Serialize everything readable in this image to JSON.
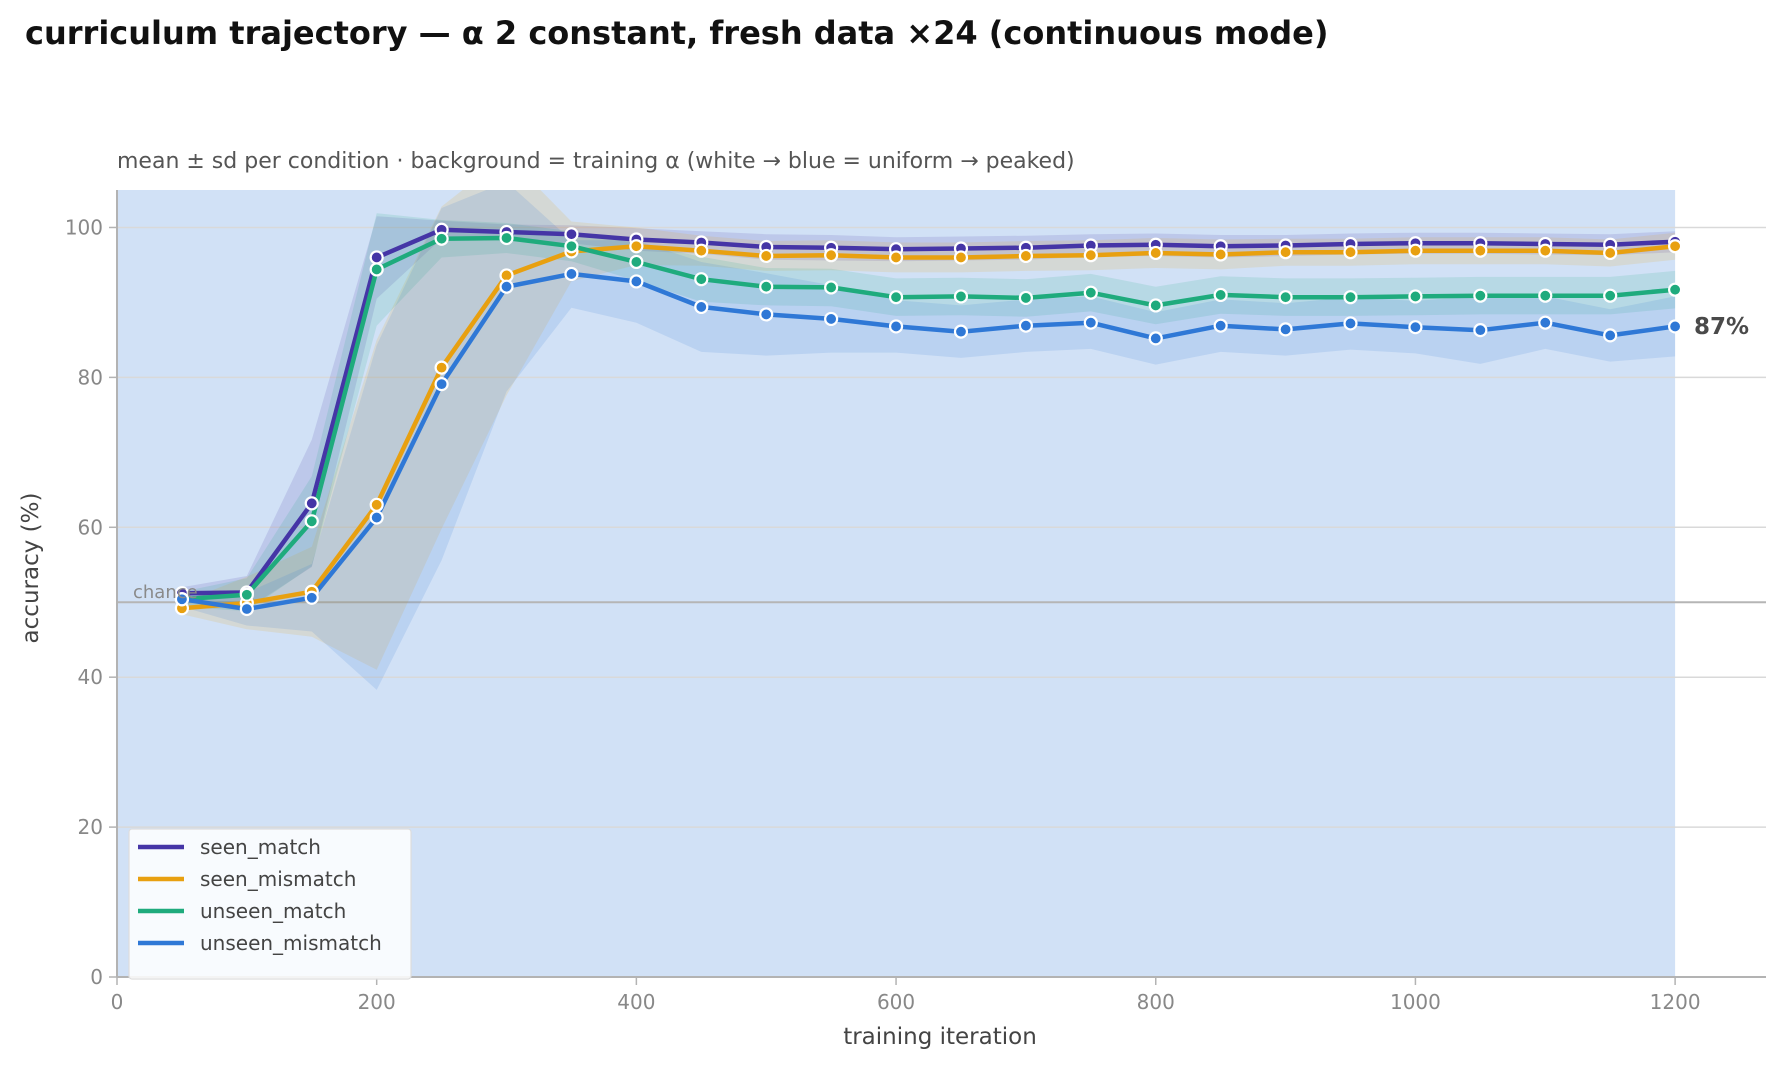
{
  "title": "curriculum trajectory — α 2 constant, fresh data ×24 (continuous mode)",
  "colors": {
    "background_band": "#d1e1f6",
    "grid": "#d9d9d9",
    "axis": "#b3b3b3",
    "chance_line": "#b5b5b5",
    "tick_text": "#888888",
    "label_text": "#444444"
  },
  "chart_data": {
    "type": "line",
    "subtitle": "mean ± sd per condition · background = training α (white → blue = uniform → peaked)",
    "xlabel": "training iteration",
    "ylabel": "accuracy (%)",
    "xlim": [
      0,
      1270
    ],
    "ylim": [
      0,
      105
    ],
    "xticks": [
      0,
      200,
      400,
      600,
      800,
      1000,
      1200
    ],
    "yticks": [
      0,
      20,
      40,
      60,
      80,
      100
    ],
    "grid": "horizontal",
    "legend_position": "lower-left",
    "background_band_x": [
      0,
      1200
    ],
    "chance": {
      "value": 50,
      "label": "chance"
    },
    "end_annotation": {
      "x": 1200,
      "y": 87,
      "text": "87%"
    },
    "x": [
      50,
      100,
      150,
      200,
      250,
      300,
      350,
      400,
      450,
      500,
      550,
      600,
      650,
      700,
      750,
      800,
      850,
      900,
      950,
      1000,
      1050,
      1100,
      1150,
      1200
    ],
    "series": [
      {
        "name": "seen_match",
        "color": "#4535a6",
        "values": [
          51.2,
          51.3,
          63.2,
          96.0,
          99.7,
          99.4,
          99.1,
          98.4,
          98.0,
          97.4,
          97.3,
          97.1,
          97.2,
          97.3,
          97.6,
          97.7,
          97.5,
          97.6,
          97.8,
          97.9,
          97.9,
          97.8,
          97.7,
          98.1
        ],
        "sd": [
          0.8,
          2.2,
          8.5,
          5.5,
          1.2,
          1.0,
          1.2,
          1.5,
          1.5,
          1.7,
          1.7,
          1.6,
          1.6,
          1.6,
          1.5,
          1.5,
          1.5,
          1.4,
          1.4,
          1.4,
          1.4,
          1.4,
          1.4,
          1.4
        ]
      },
      {
        "name": "seen_mismatch",
        "color": "#e8a010",
        "values": [
          49.2,
          49.9,
          51.4,
          63.0,
          81.3,
          93.6,
          96.8,
          97.5,
          96.9,
          96.2,
          96.3,
          96.0,
          96.0,
          96.2,
          96.3,
          96.6,
          96.4,
          96.7,
          96.7,
          96.9,
          96.9,
          96.9,
          96.6,
          97.5
        ],
        "sd": [
          0.8,
          3.5,
          6.0,
          22.0,
          21.5,
          16.0,
          4.0,
          2.5,
          2.0,
          2.0,
          2.0,
          2.0,
          2.0,
          2.0,
          2.0,
          2.0,
          2.0,
          1.8,
          1.8,
          1.8,
          1.8,
          1.8,
          1.8,
          1.8
        ]
      },
      {
        "name": "unseen_match",
        "color": "#1fab7d",
        "values": [
          50.4,
          51.0,
          60.8,
          94.4,
          98.5,
          98.6,
          97.5,
          95.4,
          93.1,
          92.1,
          92.0,
          90.7,
          90.8,
          90.6,
          91.3,
          89.6,
          91.0,
          90.7,
          90.7,
          90.8,
          90.9,
          90.9,
          90.9,
          91.7
        ],
        "sd": [
          1.0,
          2.2,
          6.0,
          7.5,
          2.5,
          2.0,
          2.0,
          2.5,
          3.0,
          2.5,
          2.5,
          2.5,
          2.5,
          2.5,
          2.5,
          2.5,
          2.5,
          2.5,
          2.5,
          2.5,
          2.5,
          2.5,
          2.5,
          2.5
        ]
      },
      {
        "name": "unseen_mismatch",
        "color": "#2f78d6",
        "values": [
          50.4,
          49.1,
          50.6,
          61.3,
          79.1,
          92.1,
          93.8,
          92.8,
          89.4,
          88.4,
          87.8,
          86.8,
          86.1,
          86.9,
          87.3,
          85.2,
          86.9,
          86.4,
          87.2,
          86.7,
          86.3,
          87.3,
          85.6,
          86.8
        ],
        "sd": [
          1.0,
          2.2,
          4.5,
          23.0,
          23.5,
          14.0,
          4.5,
          5.5,
          6.0,
          5.5,
          4.5,
          3.5,
          3.5,
          3.5,
          3.5,
          3.5,
          3.5,
          3.5,
          3.5,
          3.5,
          4.5,
          3.5,
          3.5,
          4.0
        ]
      }
    ]
  }
}
